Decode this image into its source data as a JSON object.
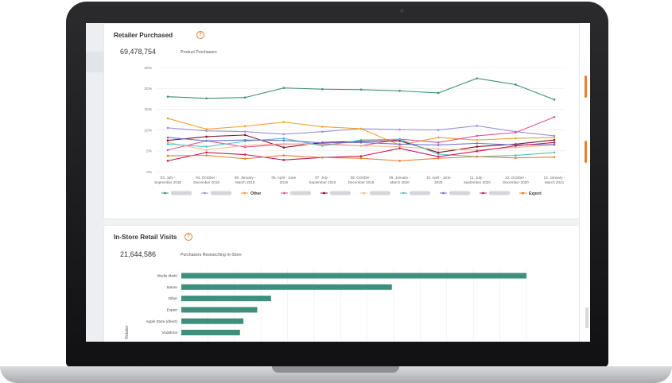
{
  "colors": {
    "accent": "#e77f2d",
    "teal": "#3e8f7c"
  },
  "retailer_purchased": {
    "title": "Retailer Purchased",
    "help_icon": "?",
    "metric_value": "69,478,754",
    "metric_label": "Product Purchasers",
    "legend_visible": [
      "Other",
      "Export"
    ]
  },
  "in_store_visits": {
    "title": "In-Store Retail Visits",
    "help_icon": "?",
    "metric_value": "21,644,586",
    "metric_label": "Purchasers Researching In-Store"
  },
  "chart_data": [
    {
      "type": "line",
      "ylim": [
        0,
        25
      ],
      "y_ticks": [
        "0%",
        "5%",
        "10%",
        "15%",
        "20%",
        "25%"
      ],
      "categories": [
        [
          "03. July -",
          "September 2018"
        ],
        [
          "04. October -",
          "December 2018"
        ],
        [
          "05. January -",
          "March 2019"
        ],
        [
          "06. April - June",
          "2019"
        ],
        [
          "07. July -",
          "September 2019"
        ],
        [
          "08. October -",
          "December 2019"
        ],
        [
          "09. January -",
          "March 2020"
        ],
        [
          "10. April - June",
          "2020"
        ],
        [
          "11. July -",
          "September 2020"
        ],
        [
          "12. October -",
          "December 2020"
        ],
        [
          "13. January -",
          "March 2021"
        ]
      ],
      "series": [
        {
          "color": "#3e8f7c",
          "values": [
            18,
            17.6,
            17.8,
            20.1,
            19.8,
            19.7,
            19.4,
            18.9,
            22.4,
            20.9,
            17.3
          ]
        },
        {
          "color": "#9b93d6",
          "values": [
            10.5,
            9.8,
            9.6,
            9.0,
            9.6,
            10.3,
            10.1,
            10.0,
            11.0,
            9.6,
            8.6
          ]
        },
        {
          "name": "Other",
          "color": "#f0a030",
          "values": [
            12.8,
            10.2,
            10.9,
            11.9,
            10.8,
            10.3,
            6.4,
            8.2,
            7.6,
            8.0,
            8.2
          ]
        },
        {
          "color": "#d9579a",
          "values": [
            5.2,
            7.4,
            5.9,
            6.6,
            6.7,
            6.2,
            7.8,
            7.0,
            8.6,
            9.4,
            13.1
          ]
        },
        {
          "color": "#7a1030",
          "values": [
            7.5,
            8.4,
            8.8,
            5.8,
            7.0,
            7.3,
            7.4,
            4.6,
            6.0,
            6.6,
            7.6
          ]
        },
        {
          "color": "#f5b98a",
          "values": [
            7.0,
            5.2,
            6.3,
            6.7,
            6.5,
            6.2,
            6.0,
            5.4,
            5.2,
            5.8,
            6.4
          ]
        },
        {
          "color": "#4fc2c0",
          "values": [
            6.6,
            6.0,
            7.3,
            8.0,
            6.2,
            7.6,
            7.8,
            4.2,
            3.6,
            3.9,
            4.6
          ]
        },
        {
          "color": "#6f73c7",
          "values": [
            8.2,
            7.4,
            7.6,
            7.5,
            6.9,
            7.0,
            6.6,
            6.4,
            6.8,
            6.4,
            6.5
          ]
        },
        {
          "color": "#c2185b",
          "values": [
            2.6,
            4.6,
            4.1,
            2.8,
            3.4,
            3.7,
            5.6,
            3.6,
            4.9,
            6.2,
            7.0
          ]
        },
        {
          "name": "Export",
          "color": "#e77f2d",
          "values": [
            3.8,
            3.9,
            3.1,
            3.9,
            3.4,
            3.2,
            2.6,
            3.2,
            3.6,
            3.3,
            3.5
          ]
        }
      ]
    },
    {
      "type": "bar",
      "orientation": "horizontal",
      "ylabel": "Retailer",
      "categories": [
        "Media Markt",
        "Saturn",
        "Other",
        "Expert",
        "Apple Store (direct)",
        "Vodafone"
      ],
      "values": [
        100,
        61,
        26,
        22,
        18,
        17
      ],
      "color": "#3e8f7c"
    }
  ]
}
